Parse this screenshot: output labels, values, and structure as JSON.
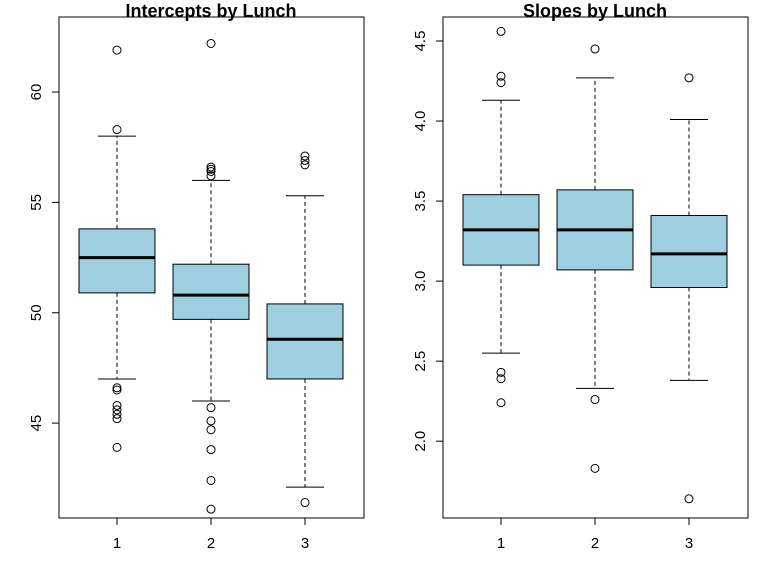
{
  "chart_data": [
    {
      "type": "box",
      "title": "Intercepts by Lunch",
      "xlabel": "",
      "ylabel": "",
      "categories": [
        "1",
        "2",
        "3"
      ],
      "yticks": [
        45,
        50,
        55,
        60
      ],
      "ylim": [
        40.7,
        63.4
      ],
      "box_color": "#9ecfe0",
      "boxes": [
        {
          "whisker_low": 47.0,
          "q1": 50.9,
          "median": 52.5,
          "q3": 53.8,
          "whisker_high": 58.0,
          "outliers": [
            61.9,
            58.3,
            46.6,
            46.5,
            45.8,
            45.6,
            45.4,
            45.2,
            43.9
          ]
        },
        {
          "whisker_low": 46.0,
          "q1": 49.7,
          "median": 50.8,
          "q3": 52.2,
          "whisker_high": 56.0,
          "outliers": [
            62.2,
            56.6,
            56.5,
            56.4,
            56.2,
            45.7,
            45.1,
            44.7,
            43.8,
            42.4,
            41.1
          ]
        },
        {
          "whisker_low": 42.1,
          "q1": 47.0,
          "median": 48.8,
          "q3": 50.4,
          "whisker_high": 55.3,
          "outliers": [
            57.1,
            56.9,
            56.7,
            41.4
          ]
        }
      ]
    },
    {
      "type": "box",
      "title": "Slopes by Lunch",
      "xlabel": "",
      "ylabel": "",
      "categories": [
        "1",
        "2",
        "3"
      ],
      "yticks": [
        2.0,
        2.5,
        3.0,
        3.5,
        4.0,
        4.5
      ],
      "ytick_labels": [
        "2.0",
        "2.5",
        "3.0",
        "3.5",
        "4.0",
        "4.5"
      ],
      "ylim": [
        1.52,
        4.65
      ],
      "box_color": "#9ecfe0",
      "boxes": [
        {
          "whisker_low": 2.55,
          "q1": 3.1,
          "median": 3.32,
          "q3": 3.54,
          "whisker_high": 4.13,
          "outliers": [
            4.56,
            4.28,
            4.24,
            2.43,
            2.39,
            2.24
          ]
        },
        {
          "whisker_low": 2.33,
          "q1": 3.07,
          "median": 3.32,
          "q3": 3.57,
          "whisker_high": 4.27,
          "outliers": [
            4.45,
            2.26,
            1.83
          ]
        },
        {
          "whisker_low": 2.38,
          "q1": 2.96,
          "median": 3.17,
          "q3": 3.41,
          "whisker_high": 4.01,
          "outliers": [
            4.27,
            1.64
          ]
        }
      ]
    }
  ]
}
